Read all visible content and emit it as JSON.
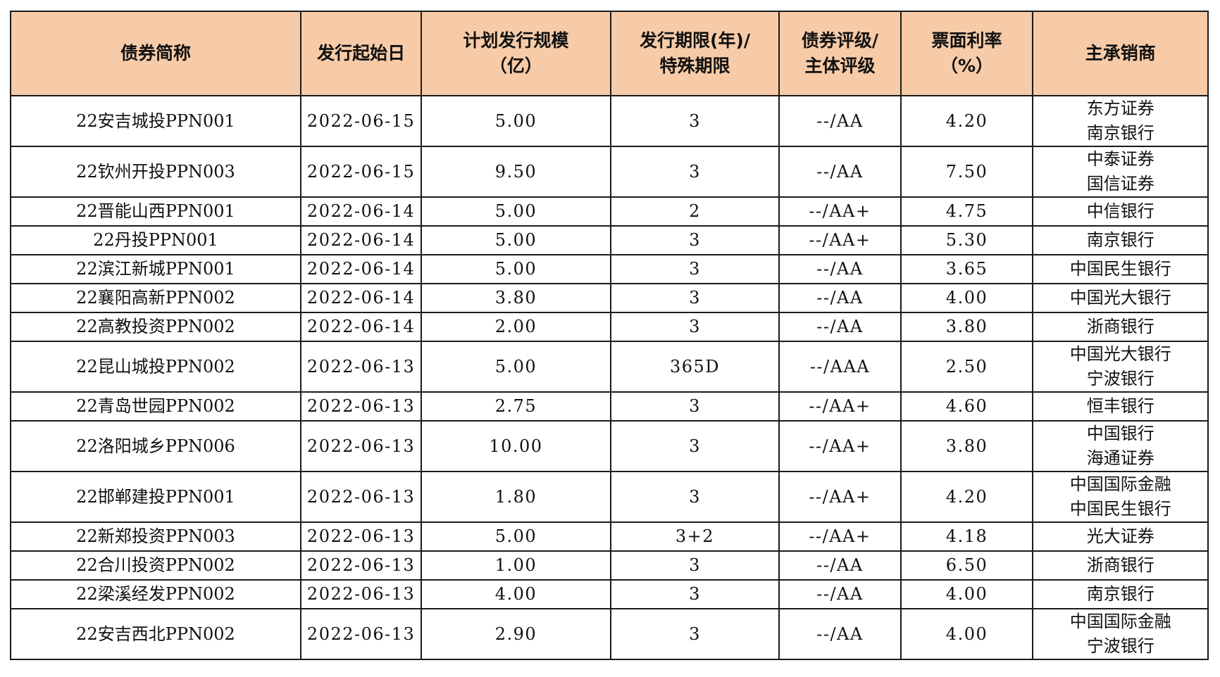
{
  "table": {
    "headers": [
      [
        "债券简称"
      ],
      [
        "发行起始日"
      ],
      [
        "计划发行规模",
        "（亿）"
      ],
      [
        "发行期限(年)/",
        "特殊期限"
      ],
      [
        "债券评级/",
        "主体评级"
      ],
      [
        "票面利率",
        "（%）"
      ],
      [
        "主承销商"
      ]
    ],
    "rows": [
      {
        "name": "22安吉城投PPN001",
        "date": "2022-06-15",
        "size": "5.00",
        "term": "3",
        "rating": "--/AA",
        "rate": "4.20",
        "underwriters": [
          "东方证券",
          "南京银行"
        ]
      },
      {
        "name": "22钦州开投PPN003",
        "date": "2022-06-15",
        "size": "9.50",
        "term": "3",
        "rating": "--/AA",
        "rate": "7.50",
        "underwriters": [
          "中泰证券",
          "国信证券"
        ]
      },
      {
        "name": "22晋能山西PPN001",
        "date": "2022-06-14",
        "size": "5.00",
        "term": "2",
        "rating": "--/AA+",
        "rate": "4.75",
        "underwriters": [
          "中信银行"
        ]
      },
      {
        "name": "22丹投PPN001",
        "date": "2022-06-14",
        "size": "5.00",
        "term": "3",
        "rating": "--/AA+",
        "rate": "5.30",
        "underwriters": [
          "南京银行"
        ]
      },
      {
        "name": "22滨江新城PPN001",
        "date": "2022-06-14",
        "size": "5.00",
        "term": "3",
        "rating": "--/AA",
        "rate": "3.65",
        "underwriters": [
          "中国民生银行"
        ]
      },
      {
        "name": "22襄阳高新PPN002",
        "date": "2022-06-14",
        "size": "3.80",
        "term": "3",
        "rating": "--/AA",
        "rate": "4.00",
        "underwriters": [
          "中国光大银行"
        ]
      },
      {
        "name": "22高教投资PPN002",
        "date": "2022-06-14",
        "size": "2.00",
        "term": "3",
        "rating": "--/AA",
        "rate": "3.80",
        "underwriters": [
          "浙商银行"
        ]
      },
      {
        "name": "22昆山城投PPN002",
        "date": "2022-06-13",
        "size": "5.00",
        "term": "365D",
        "rating": "--/AAA",
        "rate": "2.50",
        "underwriters": [
          "中国光大银行",
          "宁波银行"
        ]
      },
      {
        "name": "22青岛世园PPN002",
        "date": "2022-06-13",
        "size": "2.75",
        "term": "3",
        "rating": "--/AA+",
        "rate": "4.60",
        "underwriters": [
          "恒丰银行"
        ]
      },
      {
        "name": "22洛阳城乡PPN006",
        "date": "2022-06-13",
        "size": "10.00",
        "term": "3",
        "rating": "--/AA+",
        "rate": "3.80",
        "underwriters": [
          "中国银行",
          "海通证券"
        ]
      },
      {
        "name": "22邯郸建投PPN001",
        "date": "2022-06-13",
        "size": "1.80",
        "term": "3",
        "rating": "--/AA+",
        "rate": "4.20",
        "underwriters": [
          "中国国际金融",
          "中国民生银行"
        ]
      },
      {
        "name": "22新郑投资PPN003",
        "date": "2022-06-13",
        "size": "5.00",
        "term": "3+2",
        "rating": "--/AA+",
        "rate": "4.18",
        "underwriters": [
          "光大证券"
        ]
      },
      {
        "name": "22合川投资PPN002",
        "date": "2022-06-13",
        "size": "1.00",
        "term": "3",
        "rating": "--/AA",
        "rate": "6.50",
        "underwriters": [
          "浙商银行"
        ]
      },
      {
        "name": "22梁溪经发PPN002",
        "date": "2022-06-13",
        "size": "4.00",
        "term": "3",
        "rating": "--/AA",
        "rate": "4.00",
        "underwriters": [
          "南京银行"
        ]
      },
      {
        "name": "22安吉西北PPN002",
        "date": "2022-06-13",
        "size": "2.90",
        "term": "3",
        "rating": "--/AA",
        "rate": "4.00",
        "underwriters": [
          "中国国际金融",
          "宁波银行"
        ]
      }
    ]
  }
}
